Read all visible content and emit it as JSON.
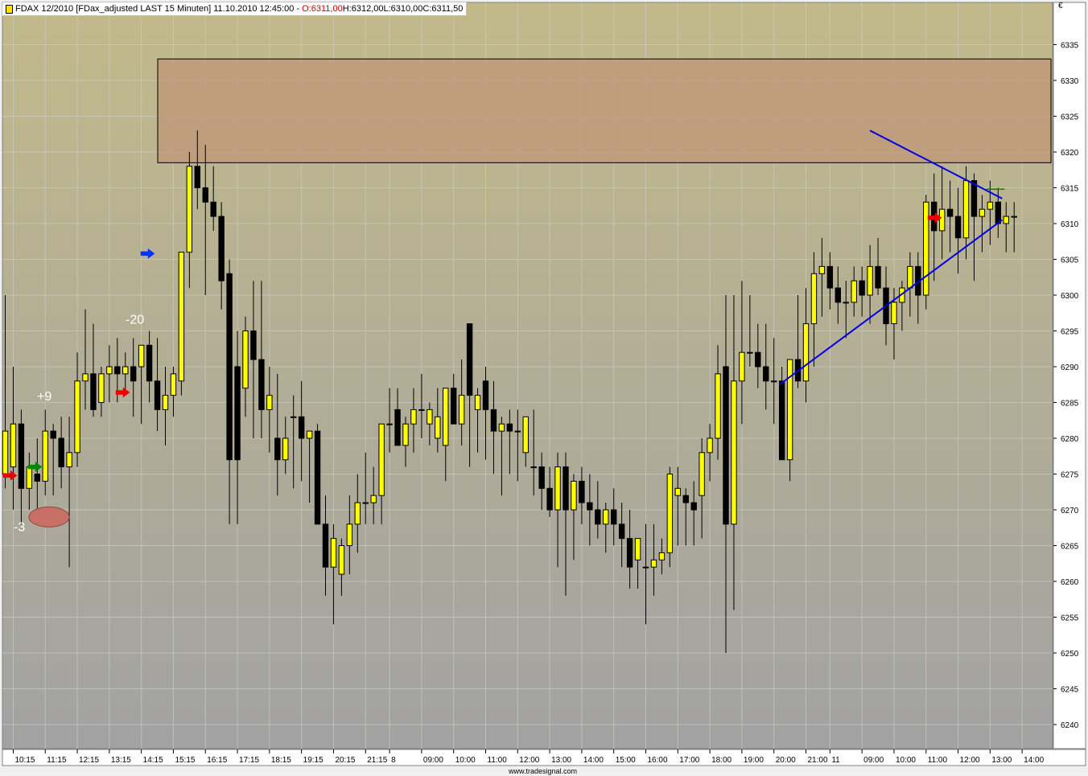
{
  "header": {
    "symbol": "FDAX 12/2010",
    "descriptor": "[FDax_adjusted LAST 15 Minuten]",
    "datetime": "11.10.2010 12:45:00",
    "separator": "-",
    "open": "O:6311,00",
    "high": "H:6312,00",
    "low": "L:6310,00",
    "close": "C:6311,50"
  },
  "currency_label": "€",
  "credit": "www.tradesignal.com",
  "colors": {
    "bg_top": "#c2b98a",
    "bg_bottom": "#a2a2a2",
    "bull_body": "#ffff00",
    "bear_body": "#000000",
    "zone_fill": "#c09a7a",
    "trendline": "#0000e0",
    "ellipse": "#c87066",
    "arrow_red": "#ee0000",
    "arrow_green": "#008800",
    "arrow_blue": "#0033ff"
  },
  "chart_data": {
    "type": "candlestick",
    "y_range": [
      6237,
      6338
    ],
    "y_ticks": [
      6240,
      6245,
      6250,
      6255,
      6260,
      6265,
      6270,
      6275,
      6280,
      6285,
      6290,
      6295,
      6300,
      6305,
      6310,
      6315,
      6320,
      6325,
      6330,
      6335
    ],
    "x_labels": [
      {
        "i": 1,
        "t": "10:15"
      },
      {
        "i": 5,
        "t": "11:15"
      },
      {
        "i": 9,
        "t": "12:15"
      },
      {
        "i": 13,
        "t": "13:15"
      },
      {
        "i": 17,
        "t": "14:15"
      },
      {
        "i": 21,
        "t": "15:15"
      },
      {
        "i": 25,
        "t": "16:15"
      },
      {
        "i": 29,
        "t": "17:15"
      },
      {
        "i": 33,
        "t": "18:15"
      },
      {
        "i": 37,
        "t": "19:15"
      },
      {
        "i": 41,
        "t": "20:15"
      },
      {
        "i": 45,
        "t": "21:15"
      },
      {
        "i": 48,
        "t": "8"
      },
      {
        "i": 52,
        "t": "09:00"
      },
      {
        "i": 56,
        "t": "10:00"
      },
      {
        "i": 60,
        "t": "11:00"
      },
      {
        "i": 64,
        "t": "12:00"
      },
      {
        "i": 68,
        "t": "13:00"
      },
      {
        "i": 72,
        "t": "14:00"
      },
      {
        "i": 76,
        "t": "15:00"
      },
      {
        "i": 80,
        "t": "16:00"
      },
      {
        "i": 84,
        "t": "17:00"
      },
      {
        "i": 88,
        "t": "18:00"
      },
      {
        "i": 92,
        "t": "19:00"
      },
      {
        "i": 96,
        "t": "20:00"
      },
      {
        "i": 100,
        "t": "21:00"
      },
      {
        "i": 103,
        "t": "11"
      },
      {
        "i": 107,
        "t": "09:00"
      },
      {
        "i": 111,
        "t": "10:00"
      },
      {
        "i": 115,
        "t": "11:00"
      },
      {
        "i": 119,
        "t": "12:00"
      },
      {
        "i": 123,
        "t": "13:00"
      },
      {
        "i": 127,
        "t": "14:00"
      }
    ],
    "candles": [
      [
        6275,
        6300,
        6273,
        6281
      ],
      [
        6276,
        6290,
        6270,
        6282
      ],
      [
        6282,
        6284,
        6268,
        6273
      ],
      [
        6273,
        6278,
        6270,
        6276
      ],
      [
        6275,
        6280,
        6270,
        6274
      ],
      [
        6274,
        6284,
        6272,
        6281
      ],
      [
        6281,
        6282,
        6272,
        6280
      ],
      [
        6280,
        6283,
        6273,
        6276
      ],
      [
        6276,
        6283,
        6262,
        6278
      ],
      [
        6278,
        6292,
        6276,
        6288
      ],
      [
        6288,
        6298,
        6284,
        6289
      ],
      [
        6289,
        6296,
        6283,
        6284
      ],
      [
        6285,
        6290,
        6283,
        6289
      ],
      [
        6289,
        6293,
        6285,
        6290
      ],
      [
        6290,
        6294,
        6285,
        6289
      ],
      [
        6289,
        6292,
        6286,
        6290
      ],
      [
        6290,
        6294,
        6283,
        6288
      ],
      [
        6290,
        6292,
        6282,
        6293
      ],
      [
        6293,
        6295,
        6285,
        6288
      ],
      [
        6288,
        6294,
        6281,
        6284
      ],
      [
        6284,
        6290,
        6279,
        6286
      ],
      [
        6286,
        6290,
        6283,
        6289
      ],
      [
        6288,
        6305,
        6286,
        6306
      ],
      [
        6306,
        6320,
        6301,
        6318
      ],
      [
        6318,
        6323,
        6312,
        6315
      ],
      [
        6315,
        6321,
        6300,
        6313
      ],
      [
        6313,
        6318,
        6309,
        6311
      ],
      [
        6311,
        6313,
        6298,
        6302
      ],
      [
        6303,
        6305,
        6268,
        6277
      ],
      [
        6290,
        6295,
        6268,
        6277
      ],
      [
        6287,
        6297,
        6283,
        6295
      ],
      [
        6295,
        6302,
        6280,
        6291
      ],
      [
        6291,
        6302,
        6280,
        6284
      ],
      [
        6284,
        6290,
        6278,
        6286
      ],
      [
        6280,
        6289,
        6272,
        6277
      ],
      [
        6277,
        6283,
        6275,
        6280
      ],
      [
        6283,
        6286,
        6273,
        6283
      ],
      [
        6283,
        6288,
        6274,
        6280
      ],
      [
        6280,
        6281,
        6271,
        6281
      ],
      [
        6281,
        6282,
        6269,
        6268
      ],
      [
        6268,
        6272,
        6258,
        6262
      ],
      [
        6262,
        6268,
        6254,
        6266
      ],
      [
        6261,
        6266,
        6258,
        6265
      ],
      [
        6265,
        6272,
        6261,
        6268
      ],
      [
        6268,
        6275,
        6264,
        6271
      ],
      [
        6271,
        6278,
        6268,
        6271
      ],
      [
        6271,
        6276,
        6268,
        6272
      ],
      [
        6272,
        6282,
        6268,
        6282
      ],
      [
        6282,
        6287,
        6278,
        6282
      ],
      [
        6284,
        6287,
        6279,
        6279
      ],
      [
        6279,
        6283,
        6276,
        6282
      ],
      [
        6282,
        6287,
        6278,
        6284
      ],
      [
        6284,
        6289,
        6280,
        6284
      ],
      [
        6282,
        6285,
        6279,
        6284
      ],
      [
        6280,
        6287,
        6278,
        6283
      ],
      [
        6279,
        6287,
        6274,
        6287
      ],
      [
        6287,
        6289,
        6283,
        6282
      ],
      [
        6282,
        6291,
        6279,
        6286
      ],
      [
        6296,
        6296,
        6276,
        6286
      ],
      [
        6284,
        6287,
        6278,
        6286
      ],
      [
        6288,
        6290,
        6277,
        6284
      ],
      [
        6284,
        6288,
        6275,
        6281
      ],
      [
        6281,
        6283,
        6272,
        6282
      ],
      [
        6282,
        6284,
        6275,
        6281
      ],
      [
        6281,
        6284,
        6274,
        6281
      ],
      [
        6278,
        6283,
        6276,
        6283
      ],
      [
        6276,
        6284,
        6272,
        6276
      ],
      [
        6276,
        6278,
        6270,
        6273
      ],
      [
        6273,
        6276,
        6269,
        6270
      ],
      [
        6270,
        6278,
        6262,
        6276
      ],
      [
        6276,
        6278,
        6258,
        6270
      ],
      [
        6270,
        6275,
        6263,
        6274
      ],
      [
        6274,
        6276,
        6268,
        6271
      ],
      [
        6271,
        6275,
        6265,
        6270
      ],
      [
        6270,
        6274,
        6266,
        6268
      ],
      [
        6268,
        6271,
        6264,
        6270
      ],
      [
        6270,
        6273,
        6265,
        6268
      ],
      [
        6268,
        6271,
        6262,
        6266
      ],
      [
        6266,
        6270,
        6259,
        6262
      ],
      [
        6263,
        6266,
        6259,
        6266
      ],
      [
        6262,
        6268,
        6254,
        6262
      ],
      [
        6262,
        6268,
        6258,
        6263
      ],
      [
        6263,
        6266,
        6261,
        6264
      ],
      [
        6264,
        6276,
        6262,
        6275
      ],
      [
        6272,
        6276,
        6265,
        6273
      ],
      [
        6272,
        6273,
        6265,
        6271
      ],
      [
        6271,
        6274,
        6265,
        6270
      ],
      [
        6272,
        6280,
        6266,
        6278
      ],
      [
        6278,
        6282,
        6274,
        6280
      ],
      [
        6280,
        6293,
        6277,
        6289
      ],
      [
        6290,
        6300,
        6250,
        6268
      ],
      [
        6268,
        6300,
        6256,
        6288
      ],
      [
        6288,
        6302,
        6282,
        6292
      ],
      [
        6292,
        6300,
        6290,
        6292
      ],
      [
        6292,
        6296,
        6287,
        6290
      ],
      [
        6290,
        6296,
        6284,
        6288
      ],
      [
        6288,
        6294,
        6282,
        6288
      ],
      [
        6288,
        6290,
        6278,
        6277
      ],
      [
        6277,
        6291,
        6274,
        6291
      ],
      [
        6291,
        6300,
        6287,
        6288
      ],
      [
        6288,
        6301,
        6285,
        6296
      ],
      [
        6296,
        6306,
        6290,
        6303
      ],
      [
        6303,
        6308,
        6297,
        6304
      ],
      [
        6304,
        6306,
        6298,
        6301
      ],
      [
        6301,
        6304,
        6296,
        6299
      ],
      [
        6299,
        6302,
        6294,
        6299
      ],
      [
        6299,
        6304,
        6297,
        6302
      ],
      [
        6302,
        6304,
        6297,
        6300
      ],
      [
        6300,
        6307,
        6296,
        6304
      ],
      [
        6304,
        6308,
        6300,
        6301
      ],
      [
        6301,
        6304,
        6293,
        6296
      ],
      [
        6296,
        6301,
        6291,
        6299
      ],
      [
        6299,
        6302,
        6295,
        6301
      ],
      [
        6301,
        6306,
        6297,
        6304
      ],
      [
        6304,
        6306,
        6296,
        6300
      ],
      [
        6300,
        6314,
        6298,
        6313
      ],
      [
        6313,
        6317,
        6302,
        6309
      ],
      [
        6309,
        6318,
        6305,
        6312
      ],
      [
        6312,
        6316,
        6306,
        6311
      ],
      [
        6311,
        6315,
        6303,
        6308
      ],
      [
        6308,
        6318,
        6305,
        6316
      ],
      [
        6316,
        6317,
        6302,
        6311
      ],
      [
        6311,
        6314,
        6306,
        6312
      ],
      [
        6312,
        6316,
        6307,
        6313
      ],
      [
        6313,
        6315,
        6308,
        6310
      ],
      [
        6310,
        6313,
        6306,
        6311
      ],
      [
        6311,
        6313,
        6306,
        6311
      ]
    ],
    "annotations": [
      {
        "kind": "text",
        "text": "+9"
      },
      {
        "kind": "text",
        "text": "-3"
      },
      {
        "kind": "text",
        "text": "-20"
      }
    ]
  }
}
